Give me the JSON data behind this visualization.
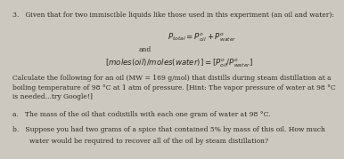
{
  "bg_color": "#cdc8bf",
  "text_color": "#2a2520",
  "title": "3.   Given that for two immiscible liquids like those used in this experiment (an oil and water):",
  "eq1": "$P_{total} = P^{o}_{oil} + P^{o}_{water}$",
  "eq1_center": "and",
  "eq2": "$[moles(oil)/moles(water)] = [P^{o}_{oil}/P^{o}_{water}]$",
  "para": "Calculate the following for an oil (MW = 169 g/mol) that distills during steam distillation at a\nboiling temperature of 98 °C at 1 atm of pressure. [Hint: The vapor pressure of water at 98 °C\nis needed...try Google!]",
  "item_a": "a.   The mass of the oil that codistills with each one gram of water at 98 °C.",
  "item_b_1": "b.   Suppose you had two grams of a spice that contained 5% by mass of this oil. How much",
  "item_b_2": "        water would be required to recover all of the oil by steam distillation?",
  "font_size": 5.5,
  "eq_font_size": 6.2
}
